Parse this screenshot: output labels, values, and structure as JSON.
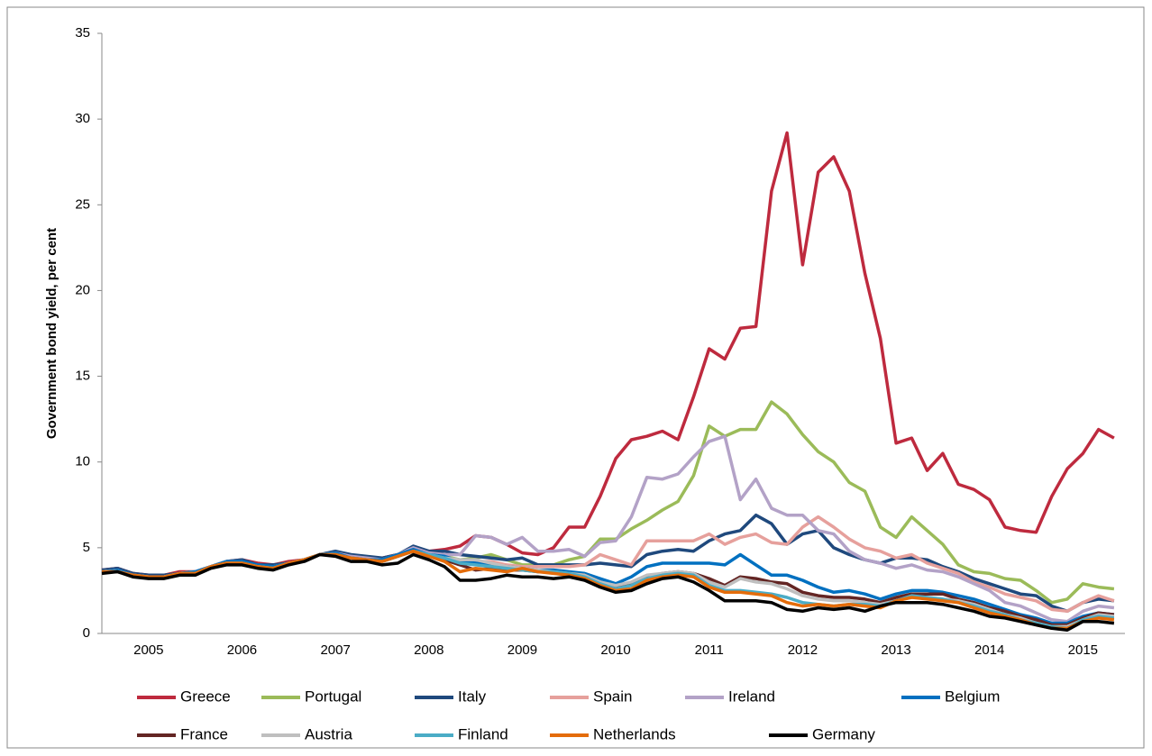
{
  "chart_data": {
    "type": "line",
    "y_label": "Government bond  yield, per cent",
    "x": [
      2005,
      2005.167,
      2005.333,
      2005.5,
      2005.667,
      2005.833,
      2006,
      2006.167,
      2006.333,
      2006.5,
      2006.667,
      2006.833,
      2007,
      2007.167,
      2007.333,
      2007.5,
      2007.667,
      2007.833,
      2008,
      2008.167,
      2008.333,
      2008.5,
      2008.667,
      2008.833,
      2009,
      2009.167,
      2009.333,
      2009.5,
      2009.667,
      2009.833,
      2010,
      2010.167,
      2010.333,
      2010.5,
      2010.667,
      2010.833,
      2011,
      2011.167,
      2011.333,
      2011.5,
      2011.667,
      2011.833,
      2012,
      2012.167,
      2012.333,
      2012.5,
      2012.667,
      2012.833,
      2013,
      2013.167,
      2013.333,
      2013.5,
      2013.667,
      2013.833,
      2014,
      2014.167,
      2014.333,
      2014.5,
      2014.667,
      2014.833,
      2015,
      2015.167,
      2015.333,
      2015.5,
      2015.667,
      2015.833
    ],
    "xlim": [
      2005,
      2015.95
    ],
    "xticks": [
      {
        "value": 2005.5,
        "label": "2005"
      },
      {
        "value": 2006.5,
        "label": "2006"
      },
      {
        "value": 2007.5,
        "label": "2007"
      },
      {
        "value": 2008.5,
        "label": "2008"
      },
      {
        "value": 2009.5,
        "label": "2009"
      },
      {
        "value": 2010.5,
        "label": "2010"
      },
      {
        "value": 2011.5,
        "label": "2011"
      },
      {
        "value": 2012.5,
        "label": "2012"
      },
      {
        "value": 2013.5,
        "label": "2013"
      },
      {
        "value": 2014.5,
        "label": "2014"
      },
      {
        "value": 2015.5,
        "label": "2015"
      }
    ],
    "ylim": [
      0,
      35
    ],
    "yticks": [
      0,
      5,
      10,
      15,
      20,
      25,
      30,
      35
    ],
    "grid": false,
    "series": [
      {
        "name": "Greece",
        "color": "#be2a3e",
        "values": [
          3.7,
          3.8,
          3.5,
          3.4,
          3.4,
          3.6,
          3.6,
          3.9,
          4.2,
          4.3,
          4.1,
          4.0,
          4.2,
          4.3,
          4.6,
          4.7,
          4.5,
          4.4,
          4.4,
          4.6,
          5.0,
          4.8,
          4.9,
          5.1,
          5.7,
          5.6,
          5.2,
          4.7,
          4.6,
          5.0,
          6.2,
          6.2,
          8.0,
          10.2,
          11.3,
          11.5,
          11.8,
          11.3,
          13.8,
          16.6,
          16.0,
          17.8,
          17.9,
          25.8,
          29.2,
          21.5,
          26.9,
          27.8,
          25.8,
          21.0,
          17.2,
          11.1,
          11.4,
          9.5,
          10.5,
          8.7,
          8.4,
          7.8,
          6.2,
          6.0,
          5.9,
          8.0,
          9.6,
          10.5,
          11.9,
          11.4
        ]
      },
      {
        "name": "Portugal",
        "color": "#9bbb59",
        "values": [
          3.6,
          3.7,
          3.4,
          3.3,
          3.3,
          3.5,
          3.6,
          3.9,
          4.2,
          4.2,
          4.0,
          3.9,
          4.1,
          4.3,
          4.6,
          4.7,
          4.5,
          4.4,
          4.3,
          4.5,
          4.9,
          4.7,
          4.5,
          4.3,
          4.4,
          4.6,
          4.3,
          4.0,
          4.0,
          4.0,
          4.3,
          4.5,
          5.5,
          5.5,
          6.1,
          6.6,
          7.2,
          7.7,
          9.2,
          12.1,
          11.5,
          11.9,
          11.9,
          13.5,
          12.8,
          11.6,
          10.6,
          10.0,
          8.8,
          8.3,
          6.2,
          5.6,
          6.8,
          6.0,
          5.2,
          4.0,
          3.6,
          3.5,
          3.2,
          3.1,
          2.5,
          1.8,
          2.0,
          2.9,
          2.7,
          2.6
        ]
      },
      {
        "name": "Italy",
        "color": "#1f497d",
        "values": [
          3.7,
          3.8,
          3.5,
          3.4,
          3.4,
          3.5,
          3.6,
          3.9,
          4.2,
          4.3,
          4.0,
          4.0,
          4.1,
          4.3,
          4.6,
          4.8,
          4.6,
          4.5,
          4.4,
          4.6,
          5.1,
          4.8,
          4.8,
          4.6,
          4.5,
          4.4,
          4.3,
          4.4,
          4.0,
          4.0,
          4.0,
          4.0,
          4.1,
          4.0,
          3.9,
          4.6,
          4.8,
          4.9,
          4.8,
          5.4,
          5.8,
          6.0,
          6.9,
          6.4,
          5.2,
          5.8,
          6.0,
          5.0,
          4.6,
          4.3,
          4.1,
          4.4,
          4.4,
          4.3,
          3.9,
          3.6,
          3.2,
          2.9,
          2.6,
          2.3,
          2.2,
          1.6,
          1.3,
          1.8,
          2.0,
          1.9
        ]
      },
      {
        "name": "Spain",
        "color": "#e6a09c",
        "values": [
          3.6,
          3.7,
          3.4,
          3.3,
          3.3,
          3.5,
          3.6,
          3.9,
          4.1,
          4.2,
          3.9,
          3.9,
          4.1,
          4.3,
          4.6,
          4.7,
          4.4,
          4.3,
          4.3,
          4.6,
          4.9,
          4.6,
          4.4,
          4.0,
          4.2,
          4.2,
          4.0,
          3.9,
          3.9,
          3.9,
          3.9,
          4.0,
          4.6,
          4.3,
          4.0,
          5.4,
          5.4,
          5.4,
          5.4,
          5.8,
          5.2,
          5.6,
          5.8,
          5.3,
          5.2,
          6.2,
          6.8,
          6.2,
          5.5,
          5.0,
          4.8,
          4.4,
          4.6,
          4.1,
          3.8,
          3.5,
          3.0,
          2.7,
          2.3,
          2.1,
          1.9,
          1.4,
          1.3,
          1.8,
          2.2,
          1.9
        ]
      },
      {
        "name": "Ireland",
        "color": "#b3a2c7",
        "values": [
          3.6,
          3.7,
          3.4,
          3.3,
          3.3,
          3.5,
          3.6,
          3.9,
          4.2,
          4.2,
          3.9,
          3.8,
          4.1,
          4.3,
          4.6,
          4.7,
          4.5,
          4.4,
          4.3,
          4.6,
          5.0,
          4.7,
          4.6,
          4.6,
          5.7,
          5.6,
          5.2,
          5.6,
          4.8,
          4.8,
          4.9,
          4.5,
          5.3,
          5.4,
          6.8,
          9.1,
          9.0,
          9.3,
          10.3,
          11.2,
          11.5,
          7.8,
          9.0,
          7.3,
          6.9,
          6.9,
          6.0,
          5.8,
          4.8,
          4.3,
          4.1,
          3.8,
          4.0,
          3.7,
          3.6,
          3.3,
          2.9,
          2.5,
          1.8,
          1.6,
          1.2,
          0.8,
          0.7,
          1.3,
          1.6,
          1.5
        ]
      },
      {
        "name": "Belgium",
        "color": "#0070c0",
        "values": [
          3.6,
          3.7,
          3.4,
          3.3,
          3.3,
          3.5,
          3.6,
          3.9,
          4.2,
          4.2,
          4.0,
          3.9,
          4.1,
          4.3,
          4.6,
          4.7,
          4.4,
          4.3,
          4.3,
          4.6,
          4.9,
          4.6,
          4.5,
          4.2,
          4.1,
          4.0,
          3.9,
          3.8,
          3.7,
          3.7,
          3.6,
          3.5,
          3.2,
          2.9,
          3.3,
          3.9,
          4.1,
          4.1,
          4.1,
          4.1,
          4.0,
          4.6,
          4.0,
          3.4,
          3.4,
          3.1,
          2.7,
          2.4,
          2.5,
          2.3,
          2.0,
          2.3,
          2.5,
          2.5,
          2.4,
          2.2,
          2.0,
          1.7,
          1.4,
          1.1,
          0.9,
          0.6,
          0.6,
          1.0,
          1.2,
          1.1
        ]
      },
      {
        "name": "France",
        "color": "#632523",
        "values": [
          3.6,
          3.6,
          3.4,
          3.3,
          3.3,
          3.5,
          3.5,
          3.9,
          4.1,
          4.1,
          3.9,
          3.8,
          4.1,
          4.3,
          4.6,
          4.6,
          4.4,
          4.3,
          4.2,
          4.5,
          4.8,
          4.5,
          4.3,
          4.0,
          3.7,
          3.8,
          3.7,
          3.7,
          3.6,
          3.6,
          3.5,
          3.4,
          3.0,
          2.7,
          2.9,
          3.3,
          3.5,
          3.6,
          3.5,
          3.2,
          2.8,
          3.3,
          3.2,
          3.0,
          2.9,
          2.4,
          2.2,
          2.1,
          2.1,
          2.0,
          1.8,
          2.1,
          2.3,
          2.3,
          2.3,
          2.0,
          1.8,
          1.5,
          1.3,
          1.0,
          0.8,
          0.5,
          0.5,
          0.9,
          1.2,
          1.1
        ]
      },
      {
        "name": "Austria",
        "color": "#bfbfbf",
        "values": [
          3.6,
          3.6,
          3.4,
          3.3,
          3.3,
          3.5,
          3.5,
          3.9,
          4.1,
          4.1,
          3.9,
          3.8,
          4.1,
          4.3,
          4.6,
          4.6,
          4.4,
          4.3,
          4.2,
          4.5,
          4.8,
          4.6,
          4.4,
          4.3,
          4.3,
          4.1,
          3.9,
          3.8,
          3.7,
          3.6,
          3.5,
          3.4,
          3.0,
          2.8,
          3.0,
          3.4,
          3.5,
          3.6,
          3.5,
          3.0,
          2.7,
          3.2,
          3.0,
          2.9,
          2.6,
          2.2,
          2.0,
          1.9,
          1.9,
          1.8,
          1.7,
          1.9,
          2.1,
          2.1,
          2.0,
          1.9,
          1.7,
          1.4,
          1.1,
          0.9,
          0.6,
          0.4,
          0.4,
          0.8,
          1.1,
          1.0
        ]
      },
      {
        "name": "Finland",
        "color": "#4bacc6",
        "values": [
          3.6,
          3.6,
          3.4,
          3.3,
          3.3,
          3.5,
          3.5,
          3.9,
          4.1,
          4.1,
          3.9,
          3.8,
          4.1,
          4.3,
          4.6,
          4.6,
          4.4,
          4.3,
          4.2,
          4.5,
          4.8,
          4.6,
          4.4,
          4.1,
          4.0,
          3.9,
          3.8,
          3.7,
          3.6,
          3.6,
          3.5,
          3.3,
          2.9,
          2.6,
          2.8,
          3.2,
          3.4,
          3.5,
          3.4,
          2.8,
          2.5,
          2.5,
          2.4,
          2.3,
          2.1,
          1.8,
          1.7,
          1.6,
          1.7,
          1.7,
          1.6,
          1.9,
          2.2,
          2.1,
          2.0,
          1.8,
          1.6,
          1.3,
          1.1,
          0.8,
          0.6,
          0.4,
          0.3,
          0.8,
          1.0,
          0.9
        ]
      },
      {
        "name": "Netherlands",
        "color": "#e46c0a",
        "values": [
          3.6,
          3.6,
          3.4,
          3.3,
          3.3,
          3.5,
          3.5,
          3.9,
          4.1,
          4.1,
          3.9,
          3.8,
          4.1,
          4.3,
          4.6,
          4.6,
          4.4,
          4.3,
          4.2,
          4.5,
          4.8,
          4.5,
          4.2,
          3.6,
          3.8,
          3.7,
          3.6,
          3.8,
          3.6,
          3.5,
          3.4,
          3.2,
          2.8,
          2.5,
          2.6,
          3.1,
          3.3,
          3.4,
          3.3,
          2.7,
          2.4,
          2.4,
          2.3,
          2.2,
          1.8,
          1.6,
          1.7,
          1.6,
          1.7,
          1.6,
          1.5,
          1.9,
          2.1,
          2.0,
          1.9,
          1.8,
          1.5,
          1.2,
          1.0,
          0.8,
          0.5,
          0.3,
          0.3,
          0.7,
          0.9,
          0.8
        ]
      },
      {
        "name": "Germany",
        "color": "#000000",
        "values": [
          3.5,
          3.6,
          3.3,
          3.2,
          3.2,
          3.4,
          3.4,
          3.8,
          4.0,
          4.0,
          3.8,
          3.7,
          4.0,
          4.2,
          4.6,
          4.5,
          4.2,
          4.2,
          4.0,
          4.1,
          4.6,
          4.3,
          3.9,
          3.1,
          3.1,
          3.2,
          3.4,
          3.3,
          3.3,
          3.2,
          3.3,
          3.1,
          2.7,
          2.4,
          2.5,
          2.9,
          3.2,
          3.3,
          3.0,
          2.5,
          1.9,
          1.9,
          1.9,
          1.8,
          1.4,
          1.3,
          1.5,
          1.4,
          1.5,
          1.3,
          1.6,
          1.8,
          1.8,
          1.8,
          1.7,
          1.5,
          1.3,
          1.0,
          0.9,
          0.7,
          0.5,
          0.3,
          0.2,
          0.7,
          0.7,
          0.6
        ]
      }
    ]
  }
}
